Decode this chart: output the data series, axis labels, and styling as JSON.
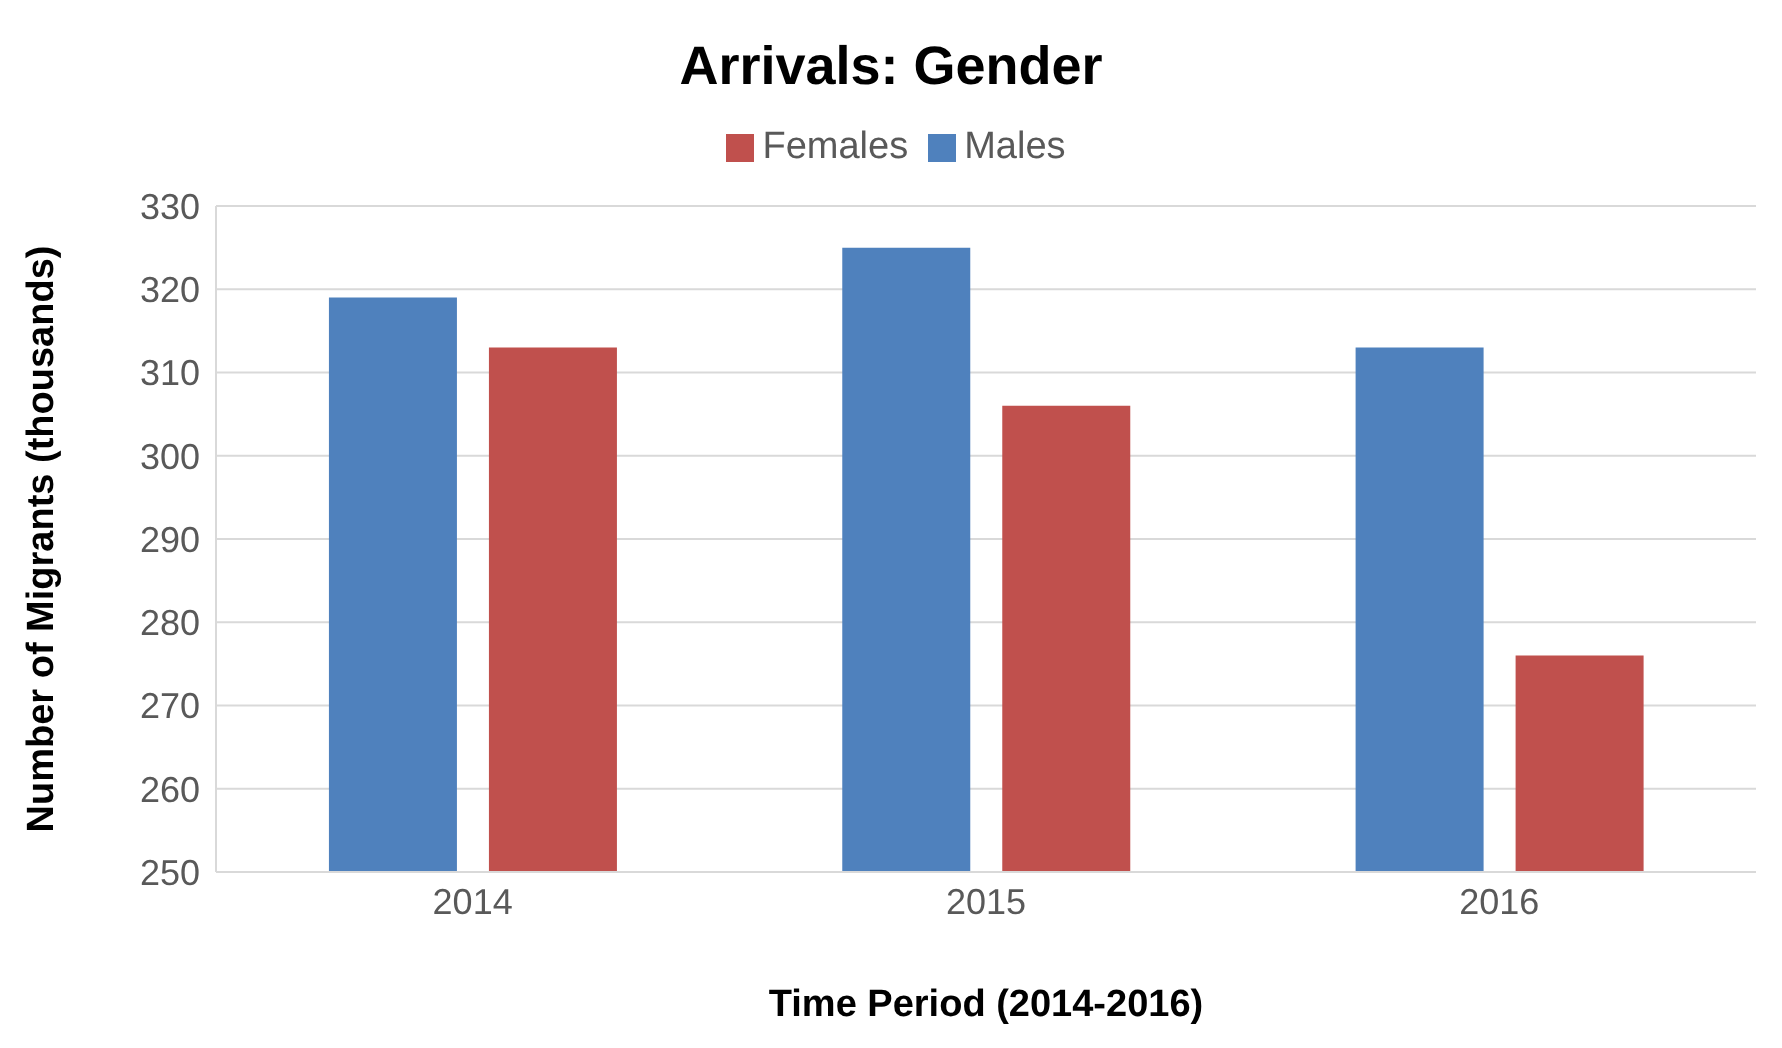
{
  "chart_data": {
    "type": "bar",
    "title": "Arrivals: Gender",
    "xlabel": "Time Period (2014-2016)",
    "ylabel": "Number of Migrants (thousands)",
    "categories": [
      "2014",
      "2015",
      "2016"
    ],
    "series": [
      {
        "name": "Males",
        "color": "#4f81bd",
        "values": [
          319,
          325,
          313
        ]
      },
      {
        "name": "Females",
        "color": "#c0504d",
        "values": [
          313,
          306,
          276
        ]
      }
    ],
    "ylim": [
      250,
      330
    ],
    "yticks": [
      250,
      260,
      270,
      280,
      290,
      300,
      310,
      320,
      330
    ],
    "grid": "y",
    "legend": "top"
  }
}
